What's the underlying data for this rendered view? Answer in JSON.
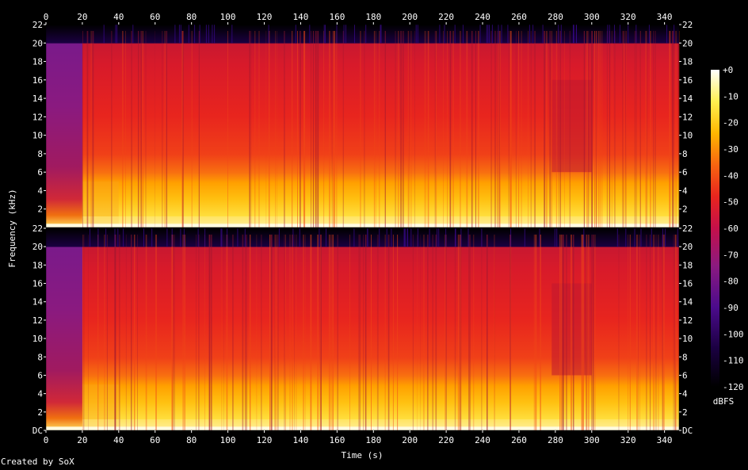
{
  "chart_data": {
    "type": "heatmap",
    "title": "",
    "xlabel": "Time (s)",
    "ylabel": "Frequency (kHz)",
    "x_ticks": [
      "0",
      "20",
      "40",
      "60",
      "80",
      "100",
      "120",
      "140",
      "160",
      "180",
      "200",
      "220",
      "240",
      "260",
      "280",
      "300",
      "320",
      "340"
    ],
    "xlim": [
      0,
      348
    ],
    "channels": [
      {
        "y_ticks": [
          "2",
          "4",
          "6",
          "8",
          "10",
          "12",
          "14",
          "16",
          "18",
          "20",
          "22"
        ],
        "bottom_label": "2"
      },
      {
        "y_ticks": [
          "DC",
          "2",
          "4",
          "6",
          "8",
          "10",
          "12",
          "14",
          "16",
          "18",
          "20",
          "22"
        ],
        "bottom_label": "DC"
      }
    ],
    "ylim_khz": [
      0,
      22
    ],
    "content_cutoff_khz": 20,
    "colorbar": {
      "label": "dBFS",
      "ticks": [
        "+0",
        "-10",
        "-20",
        "-30",
        "-40",
        "-50",
        "-60",
        "-70",
        "-80",
        "-90",
        "-100",
        "-110",
        "-120"
      ],
      "range": [
        -120,
        0
      ]
    },
    "colors": {
      "background": "#000000",
      "scale": [
        "#000000",
        "#1a0040",
        "#4b0b8c",
        "#8a1a80",
        "#c4104a",
        "#e8251e",
        "#f86510",
        "#ffb600",
        "#fff050",
        "#ffffff"
      ]
    }
  },
  "footer": {
    "credit": "Created by SoX"
  }
}
